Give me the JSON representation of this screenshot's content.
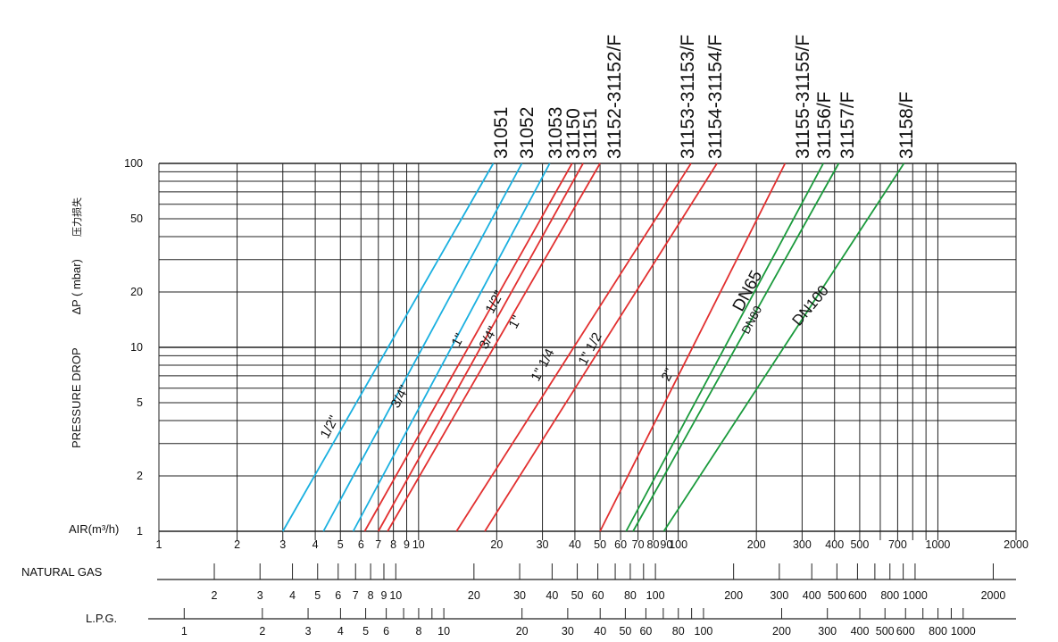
{
  "chart_data": {
    "type": "line",
    "scale": "log-log",
    "x_axes": [
      {
        "name": "AIR",
        "label": "AIR(m³/h)",
        "ticks": [
          "1",
          "2",
          "3",
          "4",
          "5",
          "6",
          "7",
          "8",
          "9",
          "10",
          "20",
          "30",
          "40",
          "50",
          "60",
          "70",
          "80",
          "90",
          "100",
          "200",
          "300",
          "400",
          "500",
          "700",
          "1000",
          "2000"
        ]
      },
      {
        "name": "NATURAL GAS",
        "label": "NATURAL GAS",
        "ticks": [
          "2",
          "3",
          "4",
          "5",
          "6",
          "7",
          "8",
          "9",
          "10",
          "20",
          "30",
          "40",
          "50",
          "60",
          "80",
          "100",
          "200",
          "300",
          "400",
          "500",
          "600",
          "800",
          "1000",
          "2000"
        ]
      },
      {
        "name": "L.P.G.",
        "label": "L.P.G.",
        "ticks": [
          "1",
          "2",
          "3",
          "4",
          "5",
          "6",
          "8",
          "10",
          "20",
          "30",
          "40",
          "50",
          "60",
          "80",
          "100",
          "200",
          "300",
          "400",
          "500",
          "600",
          "800",
          "1000"
        ]
      }
    ],
    "y_axis": {
      "label_en": "PRESSURE DROP",
      "label_sym": "∆P ( mbar)",
      "label_cn": "压力损失",
      "ticks": [
        "1",
        "2",
        "5",
        "10",
        "20",
        "50",
        "100"
      ],
      "ylim": [
        1,
        100
      ]
    },
    "xlim_air": [
      1,
      2000
    ],
    "series": [
      {
        "label": "31051",
        "size": "1/2\"",
        "color": "#1ab0e0",
        "x": [
          3.0,
          19.4
        ],
        "y": [
          1,
          100
        ]
      },
      {
        "label": "31052",
        "size": "3/4\"",
        "color": "#1ab0e0",
        "x": [
          4.3,
          25.0
        ],
        "y": [
          1,
          100
        ]
      },
      {
        "label": "31053",
        "size": "1\"",
        "color": "#1ab0e0",
        "x": [
          5.6,
          32.0
        ],
        "y": [
          1,
          100
        ]
      },
      {
        "label": "31150",
        "size": "1/2\"",
        "color": "#e23030",
        "x": [
          6.2,
          39.0
        ],
        "y": [
          1,
          100
        ]
      },
      {
        "label": "31151",
        "size": "3/4\"",
        "color": "#e23030",
        "x": [
          7.0,
          43.0
        ],
        "y": [
          1,
          100
        ]
      },
      {
        "label": "31152-31152/F",
        "size": "1\"",
        "color": "#e23030",
        "x": [
          7.6,
          50.0
        ],
        "y": [
          1,
          100
        ]
      },
      {
        "label": "",
        "size": "1\" 1/4",
        "color": "#e23030",
        "x": [
          14.0,
          112.0
        ],
        "y": [
          1,
          100
        ]
      },
      {
        "label": "31153-31153/F",
        "size": "1\" 1/2",
        "color": "#e23030",
        "x": [
          18.0,
          141.0
        ],
        "y": [
          1,
          100
        ]
      },
      {
        "label": "31154-31154/F",
        "size": "2\"",
        "color": "#e23030",
        "x": [
          50.0,
          258.0
        ],
        "y": [
          1,
          100
        ]
      },
      {
        "label": "31155-31155/F",
        "size": "DN65",
        "color": "#e23030",
        "x": [
          1,
          1
        ],
        "y": [
          1,
          1
        ]
      },
      {
        "label": "31156/F",
        "size": "DN65",
        "color": "#1a9a3c",
        "x": [
          63.0,
          362.0
        ],
        "y": [
          1,
          100
        ]
      },
      {
        "label": "31157/F",
        "size": "DN80",
        "color": "#1a9a3c",
        "x": [
          67.0,
          415.0
        ],
        "y": [
          1,
          100
        ]
      },
      {
        "label": "31158/F",
        "size": "DN100",
        "color": "#1a9a3c",
        "x": [
          88.0,
          740.0
        ],
        "y": [
          1,
          100
        ]
      }
    ],
    "header_labels": [
      "31051",
      "31052",
      "31053",
      "31150",
      "31151",
      "31152-31152/F",
      "31153-31153/F",
      "31154-31154/F",
      "31155-31155/F",
      "31156/F",
      "31157/F",
      "31158/F"
    ],
    "size_labels": [
      "1/2\"",
      "3/4\"",
      "1\"",
      "1/2\"",
      "3/4\"",
      "1\"",
      "1\" 1/4",
      "1\" 1/2",
      "2\"",
      "DN65",
      "DN80",
      "DN100"
    ]
  }
}
